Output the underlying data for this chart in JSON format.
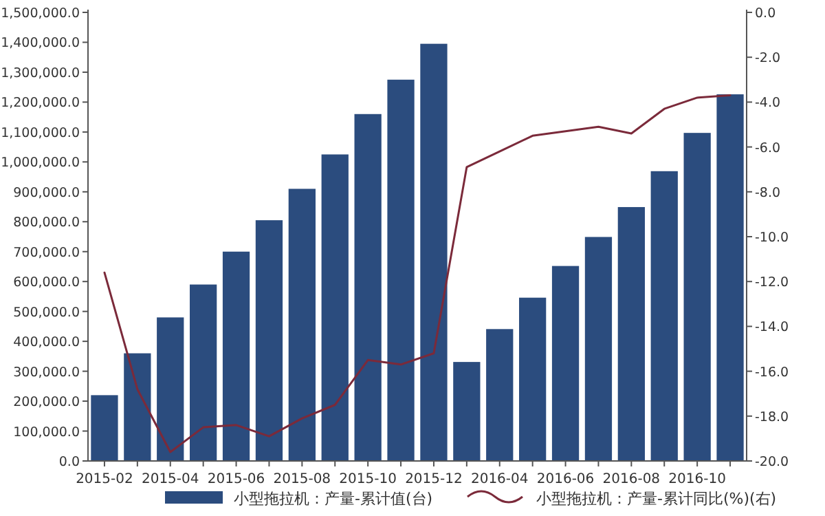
{
  "chart_data": {
    "type": "bar",
    "categories": [
      "2015-02",
      null,
      "2015-04",
      null,
      "2015-06",
      null,
      "2015-08",
      null,
      "2015-10",
      null,
      "2015-12",
      null,
      "2016-04",
      null,
      "2016-06",
      null,
      "2016-08",
      null,
      "2016-10",
      null
    ],
    "series": [
      {
        "name": "小型拖拉机：产量-累计值(台)",
        "color": "#2b4c7e",
        "values": [
          220000,
          360000,
          480000,
          590000,
          700000,
          805000,
          910000,
          1025000,
          1160000,
          1275000,
          1395000,
          331000,
          441000,
          546000,
          652000,
          749000,
          849000,
          969000,
          1097000,
          1226000
        ]
      },
      {
        "name": "小型拖拉机：产量-累计同比(%)(右)",
        "type": "line",
        "axis": "y2",
        "color": "#7b2a3a",
        "values": [
          -11.6,
          -16.8,
          -19.6,
          -18.5,
          -18.4,
          -18.9,
          -18.1,
          -17.5,
          -15.5,
          -15.7,
          -15.2,
          -6.9,
          -6.2,
          -5.5,
          -5.3,
          -5.1,
          -5.4,
          -4.3,
          -3.8,
          -3.7
        ]
      }
    ],
    "ylim": [
      0,
      1500000
    ],
    "yticks": [
      {
        "value": 0,
        "label": "0.0"
      },
      {
        "value": 100000,
        "label": "100,000.0"
      },
      {
        "value": 200000,
        "label": "200,000.0"
      },
      {
        "value": 300000,
        "label": "300,000.0"
      },
      {
        "value": 400000,
        "label": "400,000.0"
      },
      {
        "value": 500000,
        "label": "500,000.0"
      },
      {
        "value": 600000,
        "label": "600,000.0"
      },
      {
        "value": 700000,
        "label": "700,000.0"
      },
      {
        "value": 800000,
        "label": "800,000.0"
      },
      {
        "value": 900000,
        "label": "900,000.0"
      },
      {
        "value": 1000000,
        "label": "1,000,000.0"
      },
      {
        "value": 1100000,
        "label": "1,100,000.0"
      },
      {
        "value": 1200000,
        "label": "1,200,000.0"
      },
      {
        "value": 1300000,
        "label": "1,300,000.0"
      },
      {
        "value": 1400000,
        "label": "1,400,000.0"
      },
      {
        "value": 1500000,
        "label": "1,500,000.0"
      }
    ],
    "y2lim": [
      -20,
      0
    ],
    "y2ticks": [
      {
        "value": 0,
        "label": "0.0"
      },
      {
        "value": -2,
        "label": "-2.0"
      },
      {
        "value": -4,
        "label": "-4.0"
      },
      {
        "value": -6,
        "label": "-6.0"
      },
      {
        "value": -8,
        "label": "-8.0"
      },
      {
        "value": -10,
        "label": "-10.0"
      },
      {
        "value": -12,
        "label": "-12.0"
      },
      {
        "value": -14,
        "label": "-14.0"
      },
      {
        "value": -16,
        "label": "-16.0"
      },
      {
        "value": -18,
        "label": "-18.0"
      },
      {
        "value": -20,
        "label": "-20.0"
      }
    ],
    "legend": "bottom"
  }
}
